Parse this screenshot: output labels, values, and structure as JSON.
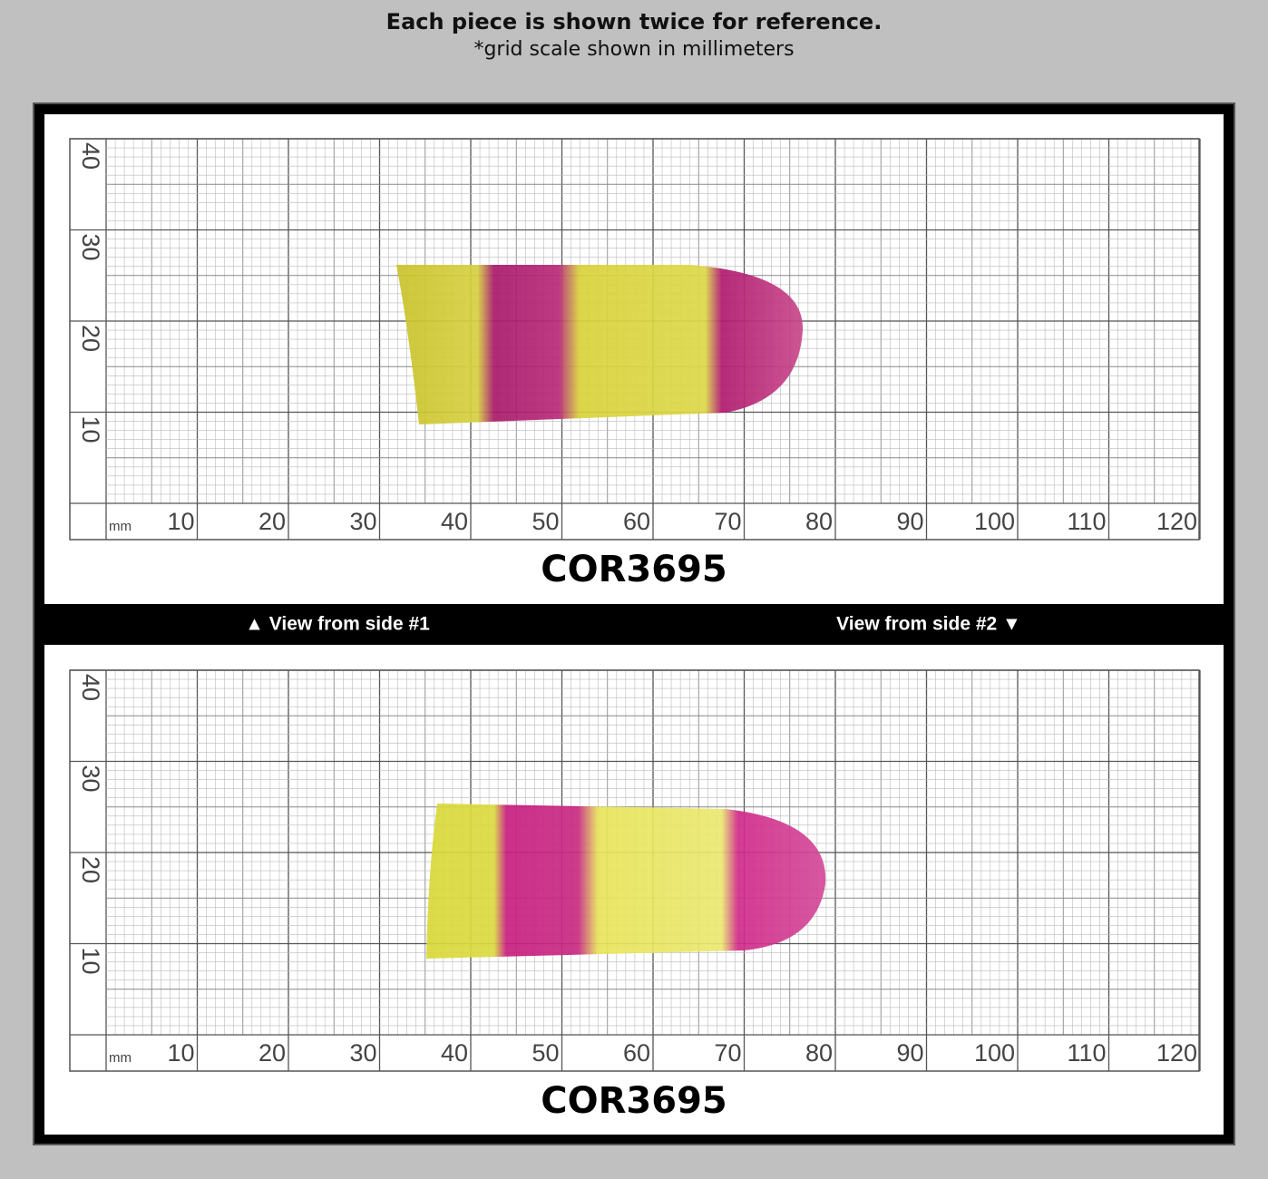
{
  "header": {
    "title": "Each piece is shown twice for reference.",
    "subtitle": "*grid scale shown in millimeters"
  },
  "panels": [
    {
      "unit": "mm",
      "x_labels": [
        10,
        20,
        30,
        40,
        50,
        60,
        70,
        80,
        90,
        100,
        110,
        120
      ],
      "y_labels": [
        10,
        20,
        30,
        40
      ],
      "code": "COR3695"
    },
    {
      "unit": "mm",
      "x_labels": [
        10,
        20,
        30,
        40,
        50,
        60,
        70,
        80,
        90,
        100,
        110,
        120
      ],
      "y_labels": [
        10,
        20,
        30,
        40
      ],
      "code": "COR3695"
    }
  ],
  "side_labels": [
    "▲ View from side #1",
    "View from side #2 ▼"
  ]
}
